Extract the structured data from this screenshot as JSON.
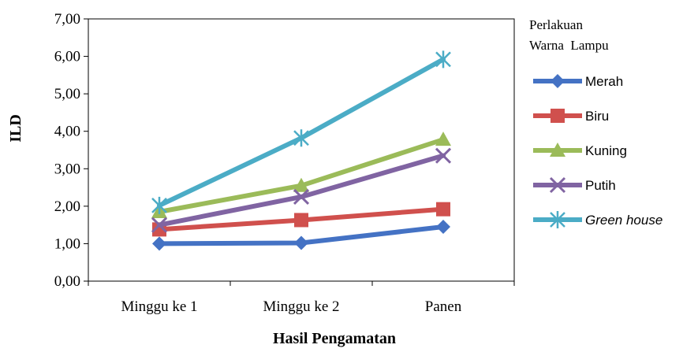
{
  "chart_data": {
    "type": "line",
    "title": "",
    "xlabel": "Hasil Pengamatan",
    "ylabel": "ILD",
    "ylim": [
      0,
      7
    ],
    "yticks": [
      "0,00",
      "1,00",
      "2,00",
      "3,00",
      "4,00",
      "5,00",
      "6,00",
      "7,00"
    ],
    "categories": [
      "Minggu ke 1",
      "Minggu ke 2",
      "Panen"
    ],
    "legend_title_line1": "Perlakuan",
    "legend_title_line2": "Warna  Lampu",
    "legend_position": "right",
    "grid": false,
    "series": [
      {
        "name": "Merah",
        "values": [
          1.0,
          1.02,
          1.45
        ],
        "color": "#4472C4",
        "marker": "diamond"
      },
      {
        "name": "Biru",
        "values": [
          1.38,
          1.63,
          1.92
        ],
        "color": "#D0504D",
        "marker": "square"
      },
      {
        "name": "Kuning",
        "values": [
          1.85,
          2.55,
          3.78
        ],
        "color": "#9BBB59",
        "marker": "triangle"
      },
      {
        "name": "Putih",
        "values": [
          1.5,
          2.25,
          3.35
        ],
        "color": "#8064A2",
        "marker": "x"
      },
      {
        "name": "Greenhouse",
        "values": [
          2.02,
          3.82,
          5.92
        ],
        "color": "#4BACC6",
        "marker": "star"
      }
    ]
  }
}
